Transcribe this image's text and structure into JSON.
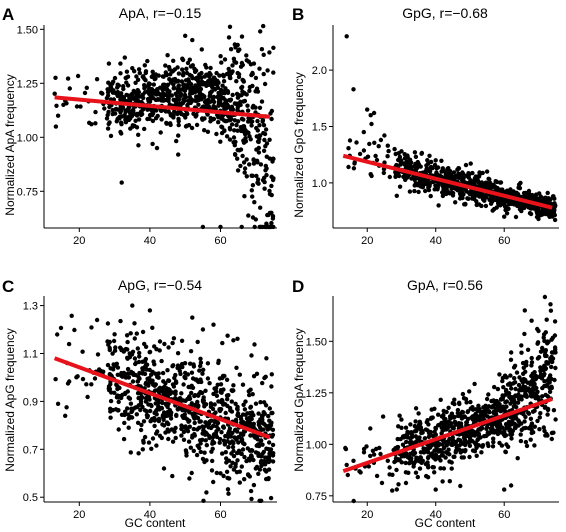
{
  "figure": {
    "panels": [
      {
        "letter": "A",
        "title": "ApA, r=−0.15",
        "ylabel": "Normalized ApA frequency",
        "xlabel": ""
      },
      {
        "letter": "B",
        "title": "GpG, r=−0.68",
        "ylabel": "Normalized GpG frequency",
        "xlabel": ""
      },
      {
        "letter": "C",
        "title": "ApG, r=−0.54",
        "ylabel": "Normalized ApG frequency",
        "xlabel": "GC content"
      },
      {
        "letter": "D",
        "title": "GpA, r=0.56",
        "ylabel": "Normalized GpA frequency",
        "xlabel": "GC content"
      }
    ]
  },
  "colors": {
    "points": "#000000",
    "fit_line": "#e8121a",
    "axis": "#000000"
  },
  "chart_data": [
    {
      "type": "scatter",
      "title": "ApA, r=−0.15",
      "xlabel": "",
      "ylabel": "Normalized ApA frequency",
      "xlim": [
        10,
        76
      ],
      "ylim": [
        0.58,
        1.52
      ],
      "xticks": [
        20,
        40,
        60
      ],
      "yticks": [
        0.75,
        1.0,
        1.25,
        1.5
      ],
      "ytick_labels": [
        "0.75",
        "1.00",
        "1.25",
        "1.50"
      ],
      "correlation": -0.15,
      "fit_line": {
        "x": [
          13,
          74
        ],
        "y": [
          1.185,
          1.095
        ]
      },
      "point_cloud": {
        "count": 900,
        "x_range": [
          13,
          75
        ],
        "description_points": [
          [
            14,
            1.1
          ],
          [
            16,
            1.17
          ],
          [
            32,
            0.79
          ],
          [
            35,
            1.32
          ],
          [
            50,
            1.47
          ],
          [
            52,
            1.45
          ],
          [
            55,
            0.57
          ],
          [
            60,
            0.55
          ],
          [
            66,
            0.5
          ],
          [
            70,
            0.62
          ],
          [
            73,
            0.6
          ],
          [
            74,
            0.65
          ],
          [
            68,
            1.35
          ],
          [
            65,
            1.4
          ],
          [
            45,
            1.38
          ],
          [
            38,
            1.28
          ],
          [
            42,
            0.95
          ],
          [
            48,
            0.92
          ]
        ]
      },
      "grid": false,
      "legend": "none"
    },
    {
      "type": "scatter",
      "title": "GpG, r=−0.68",
      "xlabel": "",
      "ylabel": "Normalized GpG frequency",
      "xlim": [
        10,
        76
      ],
      "ylim": [
        0.6,
        2.4
      ],
      "xticks": [
        20,
        40,
        60
      ],
      "yticks": [
        1.0,
        1.5,
        2.0
      ],
      "ytick_labels": [
        "1.0",
        "1.5",
        "2.0"
      ],
      "correlation": -0.68,
      "fit_line": {
        "x": [
          13,
          74
        ],
        "y": [
          1.24,
          0.78
        ]
      },
      "point_cloud": {
        "count": 900,
        "x_range": [
          14,
          75
        ],
        "description_points": [
          [
            14,
            2.3
          ],
          [
            16,
            1.83
          ],
          [
            20,
            1.65
          ],
          [
            21,
            1.6
          ],
          [
            22,
            1.62
          ],
          [
            19,
            1.45
          ],
          [
            24,
            1.38
          ],
          [
            25,
            1.42
          ],
          [
            26,
            1.33
          ],
          [
            28,
            1.3
          ],
          [
            30,
            1.28
          ],
          [
            40,
            1.2
          ],
          [
            55,
            1.1
          ],
          [
            60,
            0.7
          ],
          [
            65,
            0.75
          ],
          [
            70,
            0.68
          ],
          [
            74,
            0.8
          ],
          [
            35,
            0.92
          ]
        ]
      },
      "grid": false,
      "legend": "none"
    },
    {
      "type": "scatter",
      "title": "ApG, r=−0.54",
      "xlabel": "GC content",
      "ylabel": "Normalized ApG frequency",
      "xlim": [
        10,
        76
      ],
      "ylim": [
        0.48,
        1.34
      ],
      "xticks": [
        20,
        40,
        60
      ],
      "yticks": [
        0.5,
        0.7,
        0.9,
        1.1,
        1.3
      ],
      "ytick_labels": [
        "0.5",
        "0.7",
        "0.9",
        "1.1",
        "1.3"
      ],
      "correlation": -0.54,
      "fit_line": {
        "x": [
          13,
          74
        ],
        "y": [
          1.08,
          0.75
        ]
      },
      "point_cloud": {
        "count": 900,
        "x_range": [
          13,
          75
        ],
        "description_points": [
          [
            14,
            0.89
          ],
          [
            16,
            0.84
          ],
          [
            24,
            1.02
          ],
          [
            28,
            1.15
          ],
          [
            30,
            1.18
          ],
          [
            35,
            1.3
          ],
          [
            40,
            1.28
          ],
          [
            52,
            1.25
          ],
          [
            55,
            1.2
          ],
          [
            58,
            1.22
          ],
          [
            60,
            0.6
          ],
          [
            56,
            0.52
          ],
          [
            62,
            0.58
          ],
          [
            70,
            0.62
          ],
          [
            72,
            0.65
          ],
          [
            73,
            1.08
          ],
          [
            44,
            0.62
          ],
          [
            38,
            0.7
          ]
        ]
      },
      "grid": false,
      "legend": "none"
    },
    {
      "type": "scatter",
      "title": "GpA, r=0.56",
      "xlabel": "GC content",
      "ylabel": "Normalized GpA frequency",
      "xlim": [
        10,
        76
      ],
      "ylim": [
        0.72,
        1.72
      ],
      "xticks": [
        20,
        40,
        60
      ],
      "yticks": [
        0.75,
        1.0,
        1.25,
        1.5
      ],
      "ytick_labels": [
        "0.75",
        "1.00",
        "1.25",
        "1.50"
      ],
      "correlation": 0.56,
      "fit_line": {
        "x": [
          13,
          74
        ],
        "y": [
          0.87,
          1.22
        ]
      },
      "point_cloud": {
        "count": 900,
        "x_range": [
          13,
          75
        ],
        "description_points": [
          [
            14,
            0.9
          ],
          [
            16,
            0.92
          ],
          [
            22,
            0.95
          ],
          [
            26,
            0.92
          ],
          [
            30,
            1.08
          ],
          [
            35,
            1.15
          ],
          [
            40,
            0.78
          ],
          [
            42,
            0.82
          ],
          [
            45,
            1.2
          ],
          [
            55,
            1.22
          ],
          [
            60,
            0.78
          ],
          [
            62,
            0.8
          ],
          [
            65,
            1.48
          ],
          [
            66,
            1.65
          ],
          [
            68,
            1.6
          ],
          [
            70,
            1.55
          ],
          [
            72,
            1.45
          ],
          [
            74,
            1.4
          ]
        ]
      },
      "grid": false,
      "legend": "none"
    }
  ]
}
